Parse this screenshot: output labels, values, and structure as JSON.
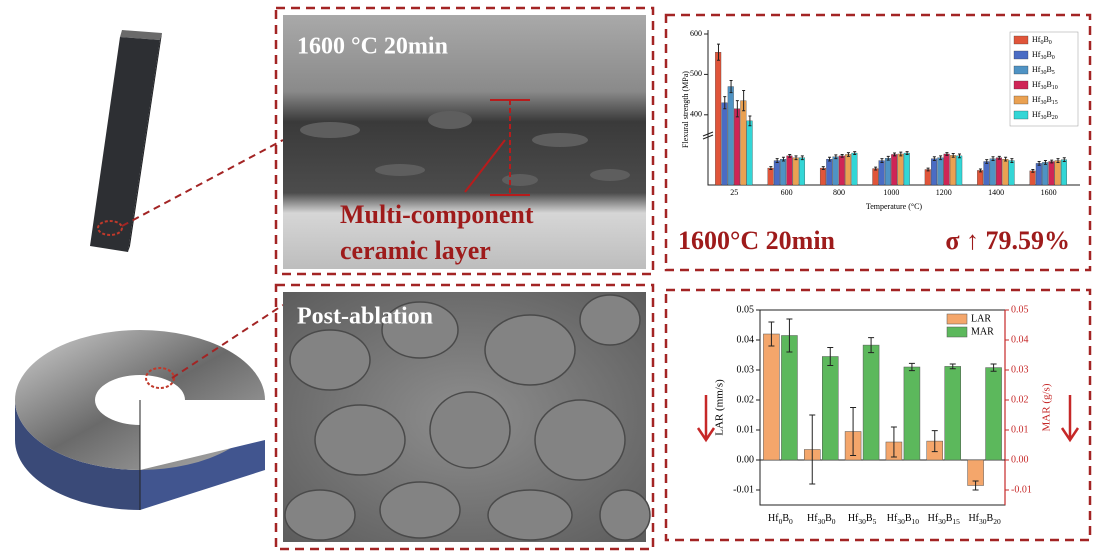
{
  "panels": {
    "cross_section": {
      "label": "1600 °C 20min",
      "annotation": [
        "Multi-component",
        "ceramic layer"
      ]
    },
    "surface": {
      "label": "Post-ablation"
    },
    "strength_caption": {
      "condition": "1600°C 20min",
      "increase": "σ ↑ 79.59%"
    }
  },
  "chart_data": [
    {
      "type": "bar",
      "y_label": "Flexural strength (MPa)",
      "x_label": "Temperature (°C)",
      "categories": [
        "25",
        "600",
        "800",
        "1000",
        "1200",
        "1400",
        "1600"
      ],
      "ylim": [
        0,
        600
      ],
      "ybreak": [
        100,
        350
      ],
      "yticks": [
        400,
        500,
        600
      ],
      "legend": "upper right",
      "series": [
        {
          "name": "Hf0B0",
          "color": "#e0553a",
          "values": [
            555,
            36,
            36,
            35,
            33,
            31,
            30
          ],
          "errors": [
            20,
            3,
            3,
            3,
            3,
            3,
            3
          ]
        },
        {
          "name": "Hf30B0",
          "color": "#4a6cc4",
          "values": [
            430,
            52,
            55,
            52,
            56,
            50,
            46
          ],
          "errors": [
            15,
            4,
            4,
            4,
            4,
            4,
            4
          ]
        },
        {
          "name": "Hf30B5",
          "color": "#4f93c4",
          "values": [
            470,
            55,
            60,
            57,
            58,
            56,
            48
          ],
          "errors": [
            15,
            4,
            4,
            4,
            4,
            4,
            4
          ]
        },
        {
          "name": "Hf30B10",
          "color": "#cf2556",
          "values": [
            415,
            62,
            62,
            65,
            66,
            58,
            50
          ],
          "errors": [
            20,
            3,
            3,
            3,
            3,
            3,
            3
          ]
        },
        {
          "name": "Hf30B15",
          "color": "#eaa152",
          "values": [
            435,
            58,
            65,
            66,
            63,
            55,
            52
          ],
          "errors": [
            25,
            4,
            4,
            4,
            4,
            4,
            4
          ]
        },
        {
          "name": "Hf30B20",
          "color": "#33d6d6",
          "values": [
            385,
            58,
            68,
            68,
            62,
            52,
            54
          ],
          "errors": [
            12,
            4,
            3,
            3,
            4,
            4,
            4
          ]
        }
      ]
    },
    {
      "type": "bar",
      "y_label": "LAR (mm/s)",
      "y2_label": "MAR (g/s)",
      "categories": [
        "Hf0B0",
        "Hf30B0",
        "Hf30B5",
        "Hf30B10",
        "Hf30B15",
        "Hf30B20"
      ],
      "ylim": [
        -0.015,
        0.05
      ],
      "y2lim": [
        -0.015,
        0.05
      ],
      "yticks": [
        -0.01,
        {
          "value": 0,
          "label": "0.00"
        },
        0.01,
        0.02,
        0.03,
        0.04,
        0.05
      ],
      "y2ticks": [
        -0.01,
        {
          "value": 0,
          "label": "0.00"
        },
        0.01,
        0.02,
        0.03,
        0.04,
        0.05
      ],
      "y2_color": "#c62828",
      "legend": "upper right",
      "series": [
        {
          "name": "LAR",
          "color": "#f4a66b",
          "values": [
            0.042,
            0.0035,
            0.0095,
            0.006,
            0.0063,
            -0.0085
          ],
          "errors": [
            0.004,
            0.0115,
            0.008,
            0.005,
            0.0035,
            0.0015
          ]
        },
        {
          "name": "MAR",
          "color": "#5cb85c",
          "axis": "y2",
          "values": [
            0.0415,
            0.0345,
            0.0383,
            0.031,
            0.0312,
            0.0308
          ],
          "errors": [
            0.0055,
            0.003,
            0.0025,
            0.0012,
            0.0008,
            0.0012
          ]
        }
      ]
    }
  ]
}
